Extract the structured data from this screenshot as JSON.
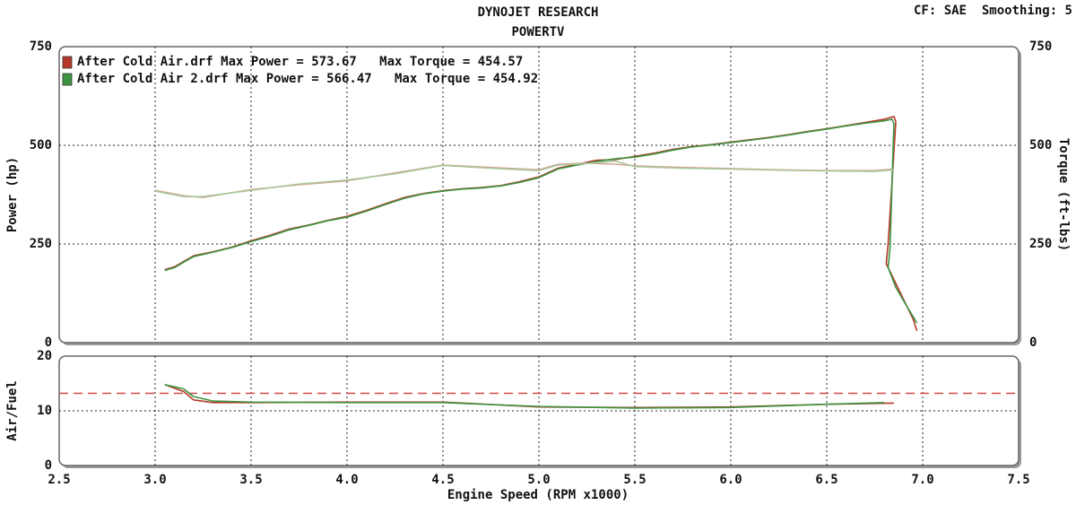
{
  "chart_data": [
    {
      "type": "line",
      "title": "DYNOJET RESEARCH",
      "subtitle": "POWERTV",
      "note": "CF: SAE  Smoothing: 5",
      "ylabel": "Power (hp)",
      "y2label": "Torque (ft-lbs)",
      "xlim": [
        2.5,
        7.5
      ],
      "xticks": [
        3,
        3.5,
        4,
        4.5,
        5,
        5.5,
        6,
        6.5,
        7
      ],
      "ylim": [
        0,
        750
      ],
      "yticks": [
        0,
        250,
        500,
        750
      ],
      "y2lim": [
        0,
        750
      ],
      "y2ticks": [
        0,
        250,
        500,
        750
      ],
      "grid": true,
      "legend": "top-left",
      "legend_notes": [
        [
          "Max Power = 573.67",
          "Max Torque = 454.57"
        ],
        [
          "Max Power = 566.47",
          "Max Torque = 454.92"
        ]
      ],
      "series": [
        {
          "name": "After Cold Air.drf",
          "color": "#b5382a",
          "x": [
            3.05,
            3.1,
            3.2,
            3.3,
            3.4,
            3.5,
            3.6,
            3.7,
            3.8,
            3.9,
            4.0,
            4.1,
            4.2,
            4.3,
            4.4,
            4.5,
            4.6,
            4.7,
            4.8,
            4.9,
            5.0,
            5.1,
            5.2,
            5.3,
            5.4,
            5.5,
            5.6,
            5.7,
            5.8,
            5.9,
            6.0,
            6.1,
            6.2,
            6.3,
            6.4,
            6.5,
            6.6,
            6.7,
            6.8,
            6.85,
            6.86,
            6.82,
            6.81,
            6.85,
            6.9,
            6.95,
            6.97
          ],
          "values": [
            185,
            192,
            220,
            230,
            242,
            258,
            272,
            288,
            298,
            310,
            320,
            335,
            352,
            368,
            378,
            385,
            390,
            393,
            398,
            408,
            420,
            442,
            452,
            462,
            464,
            472,
            480,
            490,
            497,
            502,
            508,
            514,
            520,
            527,
            535,
            542,
            550,
            558,
            566,
            573,
            560,
            250,
            200,
            160,
            110,
            60,
            30
          ]
        },
        {
          "axis": "y2",
          "color": "#d8a494",
          "x": [
            3.0,
            3.15,
            3.25,
            3.5,
            3.75,
            4.0,
            4.25,
            4.5,
            4.75,
            5.0,
            5.1,
            5.25,
            5.4,
            5.5,
            5.75,
            6.0,
            6.25,
            6.5,
            6.75,
            6.85
          ],
          "values": [
            386,
            372,
            368,
            388,
            400,
            410,
            430,
            450,
            444,
            438,
            452,
            455,
            452,
            448,
            444,
            441,
            438,
            436,
            436,
            440
          ]
        },
        {
          "name": "After Cold Air 2.drf",
          "color": "#3d9440",
          "x": [
            3.05,
            3.1,
            3.2,
            3.3,
            3.4,
            3.5,
            3.6,
            3.7,
            3.8,
            3.9,
            4.0,
            4.1,
            4.2,
            4.3,
            4.4,
            4.5,
            4.6,
            4.7,
            4.8,
            4.9,
            5.0,
            5.1,
            5.2,
            5.3,
            5.4,
            5.5,
            5.6,
            5.7,
            5.8,
            5.9,
            6.0,
            6.1,
            6.2,
            6.3,
            6.4,
            6.5,
            6.6,
            6.7,
            6.8,
            6.84,
            6.85,
            6.83,
            6.82,
            6.86,
            6.92,
            6.97
          ],
          "values": [
            183,
            190,
            218,
            229,
            241,
            256,
            270,
            286,
            297,
            309,
            318,
            333,
            350,
            366,
            377,
            384,
            389,
            392,
            397,
            406,
            418,
            440,
            450,
            459,
            466,
            470,
            478,
            488,
            496,
            501,
            507,
            513,
            519,
            526,
            534,
            541,
            549,
            556,
            562,
            566,
            555,
            240,
            190,
            140,
            90,
            50
          ]
        },
        {
          "axis": "y2",
          "color": "#a9c79c",
          "x": [
            3.0,
            3.15,
            3.25,
            3.5,
            3.75,
            4.0,
            4.25,
            4.5,
            4.75,
            5.0,
            5.1,
            5.25,
            5.4,
            5.5,
            5.75,
            6.0,
            6.25,
            6.5,
            6.75,
            6.85
          ],
          "values": [
            384,
            370,
            370,
            386,
            402,
            412,
            428,
            449,
            442,
            436,
            450,
            454,
            460,
            446,
            442,
            440,
            437,
            435,
            434,
            438
          ]
        }
      ]
    },
    {
      "type": "line",
      "ylabel": "Air/Fuel",
      "xlabel": "Engine Speed (RPM x1000)",
      "xlim": [
        2.5,
        7.5
      ],
      "xticks": [
        {
          "value": 2.5,
          "label": "2.5"
        },
        {
          "value": 3,
          "label": "3.0"
        },
        {
          "value": 3.5,
          "label": "3.5"
        },
        {
          "value": 4,
          "label": "4.0"
        },
        {
          "value": 4.5,
          "label": "4.5"
        },
        {
          "value": 5,
          "label": "5.0"
        },
        {
          "value": 5.5,
          "label": "5.5"
        },
        {
          "value": 6,
          "label": "6.0"
        },
        {
          "value": 6.5,
          "label": "6.5"
        },
        {
          "value": 7,
          "label": "7.0"
        },
        {
          "value": 7.5,
          "label": "7.5"
        }
      ],
      "ylim": [
        0,
        20
      ],
      "yticks": [
        0,
        10,
        20
      ],
      "grid": true,
      "reference_line": {
        "value": 13.2,
        "color": "#d04a4a"
      },
      "series": [
        {
          "color": "#b5382a",
          "x": [
            3.05,
            3.15,
            3.2,
            3.3,
            3.5,
            4.0,
            4.5,
            5.0,
            5.5,
            6.0,
            6.5,
            6.85
          ],
          "values": [
            14.8,
            13.5,
            12,
            11.5,
            11.5,
            11.6,
            11.6,
            10.7,
            10.6,
            10.7,
            11.2,
            11.4
          ]
        },
        {
          "color": "#3d9440",
          "x": [
            3.05,
            3.15,
            3.2,
            3.3,
            3.5,
            4.0,
            4.5,
            5.0,
            5.5,
            6.0,
            6.5,
            6.8
          ],
          "values": [
            14.8,
            14,
            12.6,
            11.8,
            11.6,
            11.5,
            11.5,
            10.8,
            10.5,
            10.6,
            11.2,
            11.5
          ]
        }
      ]
    }
  ]
}
